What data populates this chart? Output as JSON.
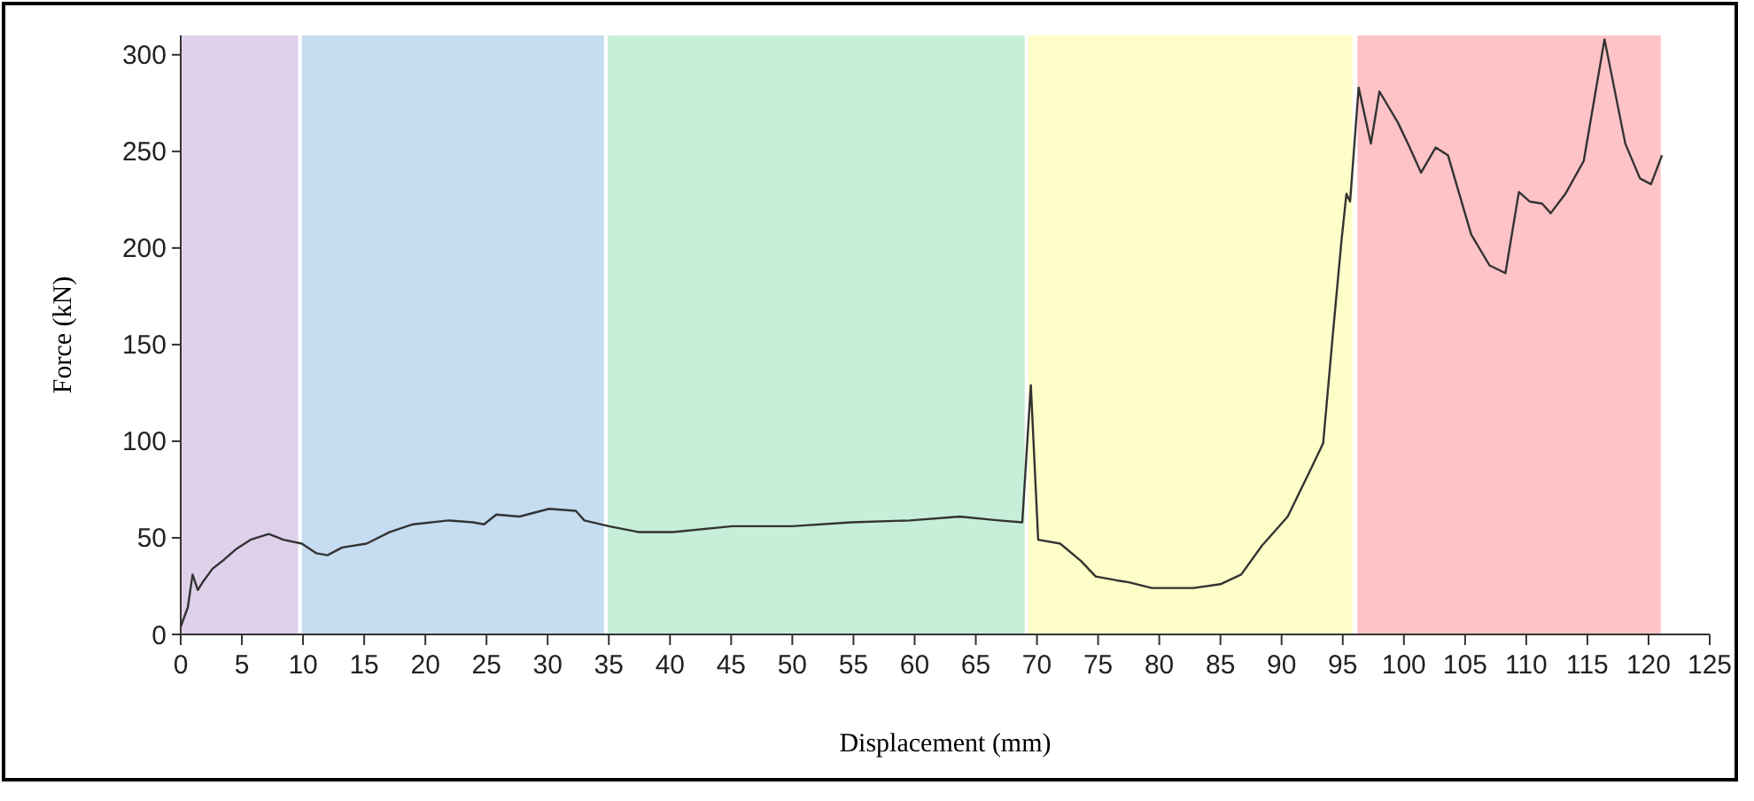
{
  "chart_data": {
    "type": "line",
    "xlabel": "Displacement (mm)",
    "ylabel": "Force (kN)",
    "xlim": [
      0,
      125
    ],
    "xticks": [
      0,
      5,
      10,
      15,
      20,
      25,
      30,
      35,
      40,
      45,
      50,
      55,
      60,
      65,
      70,
      75,
      80,
      85,
      90,
      95,
      100,
      105,
      110,
      115,
      120,
      125
    ],
    "ylim": [
      0,
      310
    ],
    "yticks": [
      0,
      50,
      100,
      150,
      200,
      250,
      300
    ],
    "grid": false,
    "marker": "none",
    "line_style": "solid",
    "bands": [
      {
        "axis": "x",
        "from": 0,
        "to": 9.6,
        "color": "#e0d1ea"
      },
      {
        "axis": "x",
        "from": 9.9,
        "to": 34.6,
        "color": "#c6dcf0"
      },
      {
        "axis": "x",
        "from": 34.9,
        "to": 69,
        "color": "#c6eed9"
      },
      {
        "axis": "x",
        "from": 69.3,
        "to": 95.8,
        "color": "#fefec8"
      },
      {
        "axis": "x",
        "from": 96.2,
        "to": 121,
        "color": "#fec3c6"
      }
    ],
    "series": [
      {
        "color": "#333333",
        "x": [
          0,
          0.58,
          0.97,
          1.4,
          1.9,
          2.6,
          3.6,
          4.5,
          5.7,
          7.2,
          8.4,
          9.9,
          11.1,
          12,
          13.2,
          15.2,
          17.1,
          19,
          21.9,
          23.9,
          24.8,
          25.8,
          27.7,
          30.1,
          32.3,
          33,
          35,
          37.4,
          40.3,
          45.1,
          50,
          54.8,
          59.6,
          63.7,
          66.9,
          68.8,
          69.5,
          70.1,
          71.9,
          73.6,
          74.8,
          76.5,
          77.5,
          79.4,
          82.8,
          85,
          86.7,
          88.4,
          90.5,
          92.5,
          93.4,
          94.2,
          94.9,
          95.3,
          95.6,
          96.3,
          97.3,
          98,
          99.5,
          100.4,
          101.4,
          102.6,
          103.6,
          105.5,
          107,
          108.3,
          109.4,
          110.3,
          111.3,
          112,
          113.2,
          114.7,
          116.4,
          118.1,
          119.3,
          120.2,
          121.1
        ],
        "values": [
          4,
          14,
          31,
          23,
          28,
          34,
          39,
          44,
          49,
          52,
          49,
          47,
          42,
          41,
          45,
          47,
          53,
          57,
          59,
          58,
          57,
          62,
          61,
          65,
          64,
          59,
          56,
          53,
          53,
          56,
          56,
          58,
          59,
          61,
          59,
          58,
          129,
          49,
          47,
          38,
          30,
          28,
          27,
          24,
          24,
          26,
          31,
          46,
          61,
          87,
          99,
          156,
          204,
          228,
          224,
          283,
          254,
          281,
          265,
          253,
          239,
          252,
          248,
          207,
          191,
          187,
          229,
          224,
          223,
          218,
          228,
          245,
          308,
          254,
          236,
          233,
          248
        ]
      }
    ]
  }
}
